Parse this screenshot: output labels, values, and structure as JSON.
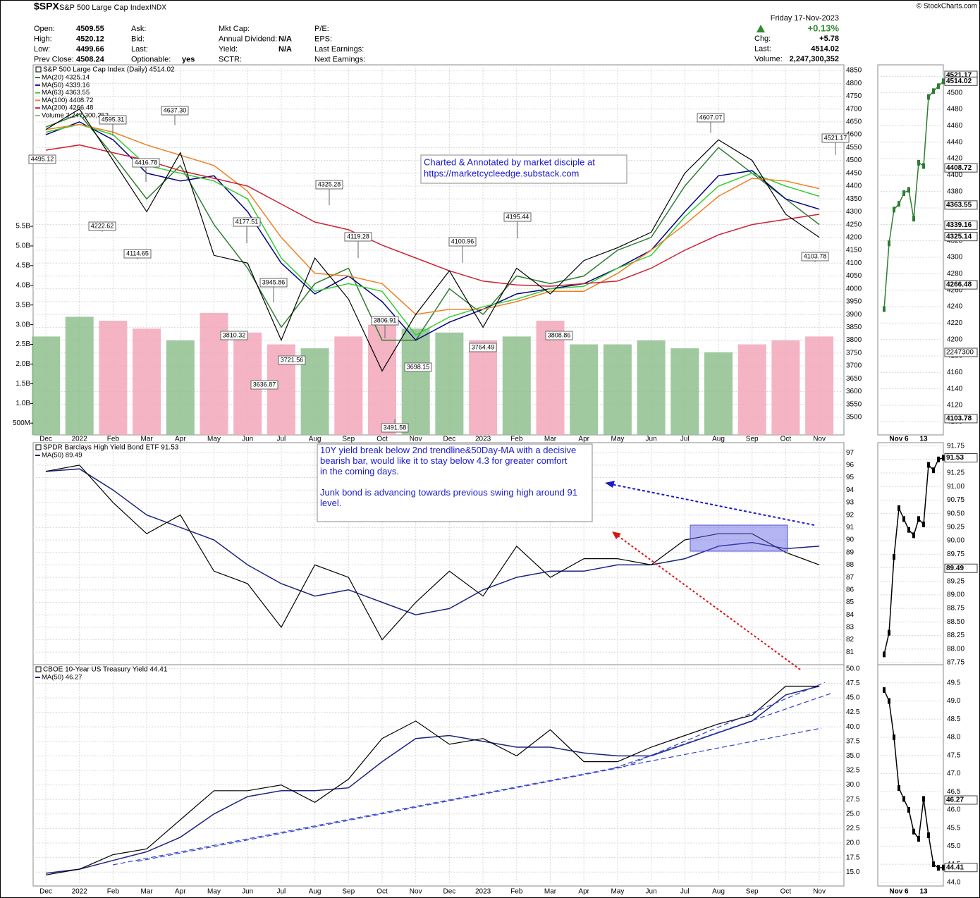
{
  "header": {
    "symbol": "$SPX",
    "name": "S&P 500 Large Cap Index",
    "exchange": "INDX",
    "copyright": "© StockCharts.com",
    "date": "Friday 17-Nov-2023",
    "fields": [
      {
        "label": "Open:",
        "value": "4509.55"
      },
      {
        "label": "High:",
        "value": "4520.12"
      },
      {
        "label": "Low:",
        "value": "4499.66"
      },
      {
        "label": "Prev Close:",
        "value": "4508.24"
      },
      {
        "label": "Ask:"
      },
      {
        "label": "Bid:"
      },
      {
        "label": "Last:"
      },
      {
        "label": "Optionable:",
        "value": "yes"
      },
      {
        "label": "Mkt Cap:"
      },
      {
        "label": "Annual Dividend:",
        "value": "N/A"
      },
      {
        "label": "Yield:",
        "value": "N/A"
      },
      {
        "label": "SCTR:"
      },
      {
        "label": "P/E:"
      },
      {
        "label": "EPS:"
      },
      {
        "label": "Last Earnings:"
      },
      {
        "label": "Next Earnings:"
      }
    ],
    "change_pct": "+0.13%",
    "quote": [
      {
        "label": "Chg:",
        "value": "+5.78"
      },
      {
        "label": "Last:",
        "value": "4514.02"
      },
      {
        "label": "Volume:",
        "value": "2,247,300,352"
      }
    ]
  },
  "chart_data": [
    {
      "type": "line",
      "title": "S&P 500 Large Cap Index (Daily) 4514.02",
      "grid": true,
      "categories": [
        "Dec",
        "2022",
        "Feb",
        "Mar",
        "Apr",
        "May",
        "Jun",
        "Jul",
        "Aug",
        "Sep",
        "Oct",
        "Nov",
        "Dec",
        "2023",
        "Feb",
        "Mar",
        "Apr",
        "May",
        "Jun",
        "Jul",
        "Aug",
        "Sep",
        "Oct",
        "Nov"
      ],
      "price": {
        "color": "#000000",
        "values": [
          4620,
          4700,
          4500,
          4300,
          4530,
          4130,
          4100,
          3800,
          4120,
          3960,
          3680,
          3900,
          4070,
          3850,
          4080,
          3980,
          4110,
          4160,
          4220,
          4450,
          4580,
          4500,
          4290,
          4200
        ]
      },
      "series": [
        {
          "name": "MA(20) 4325.14",
          "color": "#2e7d32",
          "values": [
            4630,
            4680,
            4520,
            4350,
            4480,
            4250,
            4080,
            3850,
            4020,
            4080,
            3800,
            3800,
            4000,
            3900,
            4050,
            4020,
            4050,
            4150,
            4200,
            4400,
            4550,
            4450,
            4350,
            4250
          ]
        },
        {
          "name": "MA(50) 4339.16",
          "color": "#000080",
          "values": [
            4600,
            4650,
            4580,
            4450,
            4420,
            4440,
            4300,
            4100,
            3980,
            4050,
            3950,
            3800,
            3870,
            3920,
            3980,
            4000,
            4020,
            4080,
            4150,
            4300,
            4440,
            4460,
            4350,
            4310
          ]
        },
        {
          "name": "MA(63) 4363.55",
          "color": "#33cc33",
          "values": [
            4610,
            4640,
            4600,
            4480,
            4450,
            4420,
            4350,
            4120,
            3990,
            4020,
            3990,
            3820,
            3890,
            3930,
            3960,
            4000,
            4010,
            4080,
            4130,
            4280,
            4400,
            4450,
            4400,
            4360
          ]
        },
        {
          "name": "MA(100) 4408.72",
          "color": "#f08020",
          "values": [
            4620,
            4640,
            4610,
            4560,
            4520,
            4480,
            4380,
            4200,
            4060,
            4050,
            4020,
            3900,
            3920,
            3920,
            3950,
            3990,
            3990,
            4060,
            4150,
            4250,
            4360,
            4430,
            4420,
            4390
          ]
        },
        {
          "name": "MA(200) 4266.48",
          "color": "#cc2233",
          "values": [
            4540,
            4560,
            4530,
            4500,
            4460,
            4430,
            4400,
            4330,
            4260,
            4230,
            4170,
            4120,
            4070,
            4030,
            4015,
            4010,
            4020,
            4030,
            4080,
            4150,
            4210,
            4250,
            4270,
            4290
          ]
        }
      ],
      "volume": {
        "name": "Volume 2,247,300,352",
        "up_color": "#8fbf8f",
        "down_color": "#f2a7b8",
        "values": [
          2700000000,
          3200000000,
          3100000000,
          2900000000,
          2600000000,
          3300000000,
          2800000000,
          2500000000,
          2400000000,
          2700000000,
          3000000000,
          2900000000,
          2800000000,
          2600000000,
          2700000000,
          3100000000,
          2500000000,
          2500000000,
          2600000000,
          2400000000,
          2300000000,
          2500000000,
          2600000000,
          2700000000
        ],
        "ylim": [
          200000000,
          9600000000
        ],
        "yticks": [
          {
            "value": 500000000,
            "label": "500M"
          },
          {
            "value": 1000000000,
            "label": "1.0B"
          },
          {
            "value": 1500000000,
            "label": "1.5B"
          },
          {
            "value": 2000000000,
            "label": "2.0B"
          },
          {
            "value": 2500000000,
            "label": "2.5B"
          },
          {
            "value": 3000000000,
            "label": "3.0B"
          },
          {
            "value": 3500000000,
            "label": "3.5B"
          },
          {
            "value": 4000000000,
            "label": "4.0B"
          },
          {
            "value": 4500000000,
            "label": "4.5B"
          },
          {
            "value": 5000000000,
            "label": "5.0B"
          },
          {
            "value": 5500000000,
            "label": "5.5B"
          }
        ]
      },
      "ylim": [
        3431,
        4872
      ],
      "yticks": [
        3500,
        3550,
        3600,
        3650,
        3700,
        3750,
        3800,
        3850,
        3900,
        3950,
        4000,
        4050,
        4100,
        4150,
        4200,
        4250,
        4300,
        4350,
        4400,
        4450,
        4500,
        4550,
        4600,
        4650,
        4700,
        4750,
        4800,
        4850
      ],
      "price_labels": {
        "values": [
          4495.12,
          4595.31,
          4637.3,
          4416.78,
          4222.62,
          4114.65,
          4177.51,
          4325.28,
          4119.28,
          3945.86,
          3810.32,
          3721.56,
          3636.87,
          3806.91,
          3698.15,
          3491.58,
          4100.96,
          3764.49,
          4195.44,
          3808.86,
          4607.07,
          4521.17,
          4103.78
        ],
        "value_labels": [
          "4495.12",
          "4595.31",
          "4637.30",
          "4416.78",
          "4222.62",
          "4114.65",
          "4177.51",
          "4325.28",
          "4119.28",
          "3945.86",
          "3810.32",
          "3721.56",
          "3636.87",
          "3806.91",
          "3698.15",
          "3491.58",
          "4100.96",
          "3764.49",
          "4195.44",
          "3808.86",
          "4607.07",
          "4521.17",
          "4103.78"
        ]
      },
      "note": [
        "Charted & Annotated by market disciple at",
        "https://marketcycleedge.substack.com"
      ]
    },
    {
      "type": "line",
      "title": "SPDR Barclays High Yield Bond ETF 91.53",
      "grid": true,
      "price": {
        "color": "#000000",
        "values": [
          95.5,
          96,
          93,
          90.5,
          92,
          87.5,
          86.5,
          83,
          88,
          87,
          82,
          85,
          87.5,
          85.5,
          89.5,
          87,
          88.5,
          88.5,
          88,
          90,
          90.5,
          90.5,
          89,
          88
        ]
      },
      "series": [
        {
          "name": "MA(50) 89.49",
          "color": "#1a237e",
          "values": [
            95.5,
            95.7,
            94,
            92,
            91,
            90,
            88,
            86.5,
            85.5,
            86,
            85,
            84,
            84.5,
            86,
            87,
            87.5,
            87.5,
            88,
            88,
            88.5,
            89.5,
            89.8,
            89.3,
            89.5
          ]
        }
      ],
      "ylim": [
        80,
        97.8
      ],
      "yticks": [
        81,
        82,
        83,
        84,
        85,
        86,
        87,
        88,
        89,
        90,
        91,
        92,
        93,
        94,
        95,
        96,
        97
      ],
      "note": [
        "10Y yield break below 2nd trendline&50Day-MA with a decisive bearish bar, would like it to stay below 4.3 for greater comfort in the coming days.",
        "Junk bond is advancing towards previous swing high around 91 level."
      ]
    },
    {
      "type": "line",
      "title": "CBOE 10-Year US Treasury Yield 44.41",
      "grid": true,
      "categories": [
        "Dec",
        "2022",
        "Feb",
        "Mar",
        "Apr",
        "May",
        "Jun",
        "Jul",
        "Aug",
        "Sep",
        "Oct",
        "Nov",
        "Dec",
        "2023",
        "Feb",
        "Mar",
        "Apr",
        "May",
        "Jun",
        "Jul",
        "Aug",
        "Sep",
        "Oct",
        "Nov"
      ],
      "price": {
        "color": "#000000",
        "values": [
          14.5,
          15.5,
          18,
          19,
          24,
          29,
          29,
          30,
          27,
          31,
          38,
          41,
          37,
          38,
          35,
          39.5,
          34,
          34,
          36.5,
          38.5,
          40.5,
          42,
          47,
          47
        ]
      },
      "series": [
        {
          "name": "MA(50) 46.27",
          "color": "#1a237e",
          "values": [
            14.8,
            15.5,
            17,
            18.5,
            21,
            25,
            28,
            29,
            29,
            29.5,
            34,
            38,
            38.5,
            37.5,
            36.5,
            36.5,
            35.5,
            35,
            35,
            37,
            39,
            41,
            45.5,
            47
          ]
        }
      ],
      "ylim": [
        12.6,
        50.7
      ],
      "yticks": [
        {
          "value": 15,
          "label": "15.0"
        },
        17.5,
        {
          "value": 20,
          "label": "20.0"
        },
        22.5,
        {
          "value": 25,
          "label": "25.0"
        },
        27.5,
        {
          "value": 30,
          "label": "30.0"
        },
        32.5,
        {
          "value": 35,
          "label": "35.0"
        },
        37.5,
        {
          "value": 40,
          "label": "40.0"
        },
        42.5,
        {
          "value": 45,
          "label": "45.0"
        },
        47.5,
        {
          "value": 50,
          "label": "50.0"
        }
      ]
    },
    {
      "type": "line",
      "categories": [
        null,
        null,
        null,
        "Nov 6",
        null,
        null,
        null,
        null,
        "13",
        null,
        null,
        null,
        null
      ],
      "values": [
        4237,
        4317,
        4358,
        4365,
        4378,
        4382,
        4347,
        4415,
        4411,
        4495,
        4502,
        4508,
        4514
      ],
      "color": "#2e7d32",
      "ylim": [
        4084,
        4534
      ],
      "yticks": [
        4100,
        4120,
        4140,
        4160,
        4180,
        4200,
        4220,
        4240,
        4260,
        4280,
        4300,
        4320,
        4340,
        4360,
        4380,
        4400,
        4420,
        4440,
        4460,
        4480,
        4500,
        4520
      ],
      "tags": {
        "values": [
          4521.17,
          4514.02,
          4408.72,
          4363.55,
          4339.16,
          4325.14,
          4266.48,
          4103.78
        ],
        "value_labels": [
          "4521.17",
          "4514.02",
          "4408.72",
          "4363.55",
          "4339.16",
          "4325.14",
          "4266.48",
          "4103.78"
        ]
      },
      "volume_tag": "2247300"
    },
    {
      "type": "line",
      "values": [
        87.9,
        88.3,
        89.7,
        90.6,
        90.4,
        90.2,
        90.1,
        90.4,
        90.3,
        91.4,
        91.3,
        91.5,
        91.53
      ],
      "color": "#000000",
      "ylim": [
        87.71,
        91.81
      ],
      "yticks": [
        87.75,
        {
          "value": 88,
          "label": "88.00"
        },
        88.25,
        {
          "value": 88.5,
          "label": "88.50"
        },
        88.75,
        {
          "value": 89,
          "label": "89.00"
        },
        89.25,
        {
          "value": 89.5,
          "label": "89.50"
        },
        89.75,
        {
          "value": 90,
          "label": "90.00"
        },
        90.25,
        {
          "value": 90.5,
          "label": "90.50"
        },
        90.75,
        {
          "value": 91,
          "label": "91.00"
        },
        91.25,
        {
          "value": 91.5,
          "label": "91.50"
        },
        91.75
      ],
      "tags": {
        "values": [
          91.53,
          89.49
        ],
        "value_labels": [
          "91.53",
          "89.49"
        ]
      }
    },
    {
      "type": "line",
      "categories": [
        null,
        null,
        null,
        "Nov 6",
        null,
        null,
        null,
        null,
        "13",
        null,
        null,
        null,
        null
      ],
      "values": [
        49.3,
        49.0,
        48.0,
        46.6,
        46.3,
        46.0,
        45.4,
        45.2,
        46.3,
        45.3,
        44.5,
        44.4,
        44.41
      ],
      "color": "#000000",
      "ylim": [
        43.9,
        50.0
      ],
      "yticks": [
        {
          "value": 44,
          "label": "44.0"
        },
        44.5,
        {
          "value": 45,
          "label": "45.0"
        },
        45.5,
        {
          "value": 46,
          "label": "46.0"
        },
        46.5,
        {
          "value": 47,
          "label": "47.0"
        },
        47.5,
        {
          "value": 48,
          "label": "48.0"
        },
        48.5,
        {
          "value": 49,
          "label": "49.0"
        },
        49.5
      ],
      "tags": {
        "values": [
          46.27,
          44.41
        ],
        "value_labels": [
          "46.27",
          "44.41"
        ]
      }
    }
  ]
}
